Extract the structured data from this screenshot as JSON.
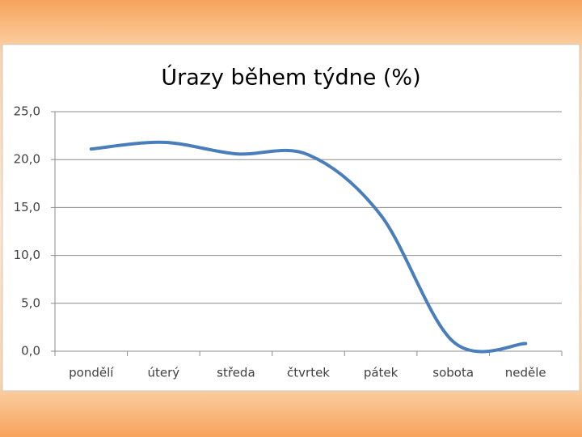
{
  "chart_data": {
    "type": "line",
    "title": "Úrazy během týdne (%)",
    "categories": [
      "pondělí",
      "úterý",
      "středa",
      "čtvrtek",
      "pátek",
      "sobota",
      "neděle"
    ],
    "values": [
      21.1,
      21.8,
      20.6,
      20.5,
      14.2,
      1.0,
      0.8
    ],
    "color": "#4a7ebb",
    "ylim": [
      0,
      25
    ],
    "yticks": [
      {
        "value": 0,
        "label": "0,0"
      },
      {
        "value": 5,
        "label": "5,0"
      },
      {
        "value": 10,
        "label": "10,0"
      },
      {
        "value": 15,
        "label": "15,0"
      },
      {
        "value": 20,
        "label": "20,0"
      },
      {
        "value": 25,
        "label": "25,0"
      }
    ],
    "grid": true
  }
}
